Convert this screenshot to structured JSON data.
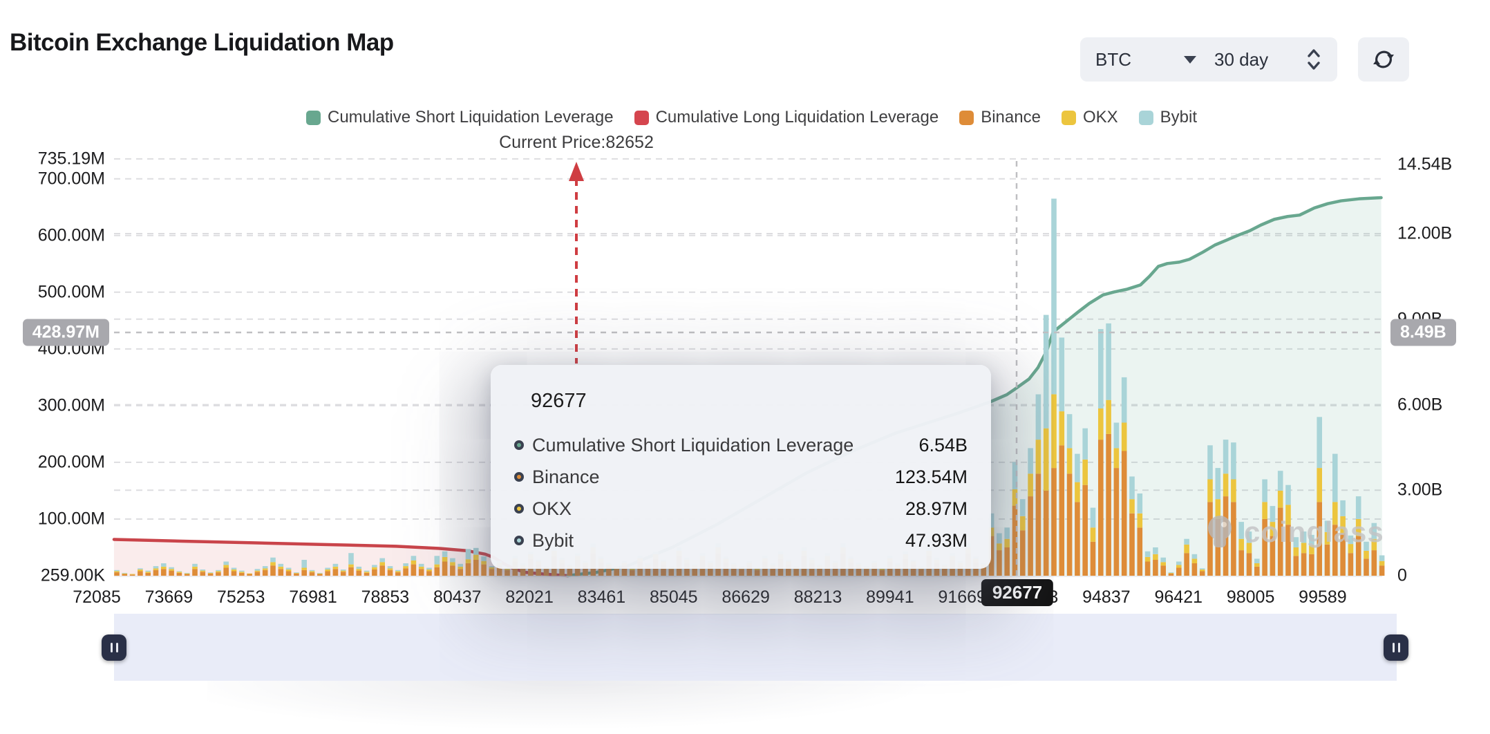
{
  "header": {
    "title": "Bitcoin Exchange Liquidation Map",
    "coin_selected": "BTC",
    "period_selected": "30 day"
  },
  "legend": [
    {
      "label": "Cumulative Short Liquidation Leverage",
      "color": "#68a78f"
    },
    {
      "label": "Cumulative Long Liquidation Leverage",
      "color": "#d5454e"
    },
    {
      "label": "Binance",
      "color": "#de8c38"
    },
    {
      "label": "OKX",
      "color": "#ecc53e"
    },
    {
      "label": "Bybit",
      "color": "#a9d4d8"
    }
  ],
  "current_price_label": "Current Price:82652",
  "tooltip": {
    "title": "92677",
    "rows": [
      {
        "label": "Cumulative Short Liquidation Leverage",
        "value": "6.54B",
        "color": "#68a78f"
      },
      {
        "label": "Binance",
        "value": "123.54M",
        "color": "#de8c38"
      },
      {
        "label": "OKX",
        "value": "28.97M",
        "color": "#ecc53e"
      },
      {
        "label": "Bybit",
        "value": "47.93M",
        "color": "#a9d4d8"
      }
    ]
  },
  "axes": {
    "left_labels": [
      {
        "text": "735.19M",
        "value": 735.19
      },
      {
        "text": "700.00M",
        "value": 700
      },
      {
        "text": "600.00M",
        "value": 600
      },
      {
        "text": "500.00M",
        "value": 500
      },
      {
        "text": "400.00M",
        "value": 400
      },
      {
        "text": "300.00M",
        "value": 300
      },
      {
        "text": "200.00M",
        "value": 200
      },
      {
        "text": "100.00M",
        "value": 100
      },
      {
        "text": "259.00K",
        "value": 0.259
      }
    ],
    "right_labels": [
      {
        "text": "14.54B",
        "value": 14.54
      },
      {
        "text": "12.00B",
        "value": 12
      },
      {
        "text": "9.00B",
        "value": 9
      },
      {
        "text": "6.00B",
        "value": 6
      },
      {
        "text": "3.00B",
        "value": 3
      },
      {
        "text": "0",
        "value": 0
      }
    ],
    "x_labels": [
      "72085",
      "73669",
      "75253",
      "76981",
      "78853",
      "80437",
      "82021",
      "83461",
      "85045",
      "86629",
      "88213",
      "89941",
      "91669",
      "93253",
      "94837",
      "96421",
      "98005",
      "99589"
    ],
    "crosshair_left_badge": "428.97M",
    "crosshair_right_badge": "8.49B",
    "crosshair_x_badge": "92677"
  },
  "watermark": "coinglass",
  "chart_data": {
    "type": "composite",
    "note": "dual-axis: left axis M (bars + long line), right axis B (short line); x = BTC price",
    "x_range": [
      72085,
      100900
    ],
    "left_axis_max_M": 735.19,
    "right_axis_max_B": 14.54,
    "current_price": 82652,
    "crosshair": {
      "x_price": 92677,
      "left_value_M": 428.97,
      "right_value_B": 8.49
    },
    "grid_left_M": [
      700,
      600,
      500,
      400,
      300,
      200,
      100
    ],
    "grid_right_B": [
      12,
      9,
      6,
      3
    ],
    "long_line_price_M": [
      [
        72472,
        64
      ],
      [
        74000,
        61
      ],
      [
        75600,
        58
      ],
      [
        77200,
        55
      ],
      [
        78800,
        52
      ],
      [
        79800,
        48
      ],
      [
        80400,
        44
      ],
      [
        80800,
        38
      ],
      [
        81000,
        32
      ],
      [
        81200,
        22
      ],
      [
        81450,
        12
      ],
      [
        81700,
        6
      ],
      [
        82100,
        3
      ],
      [
        82450,
        1
      ],
      [
        82652,
        0
      ]
    ],
    "short_line_price_B": [
      [
        82652,
        0
      ],
      [
        82900,
        0.05
      ],
      [
        83300,
        0.12
      ],
      [
        84000,
        0.35
      ],
      [
        85000,
        1.0
      ],
      [
        86000,
        1.8
      ],
      [
        87000,
        2.7
      ],
      [
        88000,
        3.6
      ],
      [
        89000,
        4.35
      ],
      [
        90000,
        5.0
      ],
      [
        91400,
        5.7
      ],
      [
        92130,
        6.1
      ],
      [
        92500,
        6.35
      ],
      [
        92677,
        6.54
      ],
      [
        93000,
        6.9
      ],
      [
        93200,
        7.3
      ],
      [
        93400,
        7.9
      ],
      [
        93540,
        8.55
      ],
      [
        93700,
        8.75
      ],
      [
        93900,
        9.0
      ],
      [
        94100,
        9.25
      ],
      [
        94350,
        9.55
      ],
      [
        94660,
        9.85
      ],
      [
        94900,
        9.95
      ],
      [
        95200,
        10.05
      ],
      [
        95500,
        10.2
      ],
      [
        95700,
        10.5
      ],
      [
        95900,
        10.85
      ],
      [
        96100,
        10.95
      ],
      [
        96370,
        11.0
      ],
      [
        96600,
        11.1
      ],
      [
        96900,
        11.35
      ],
      [
        97170,
        11.6
      ],
      [
        97400,
        11.75
      ],
      [
        97700,
        11.95
      ],
      [
        97950,
        12.1
      ],
      [
        98200,
        12.3
      ],
      [
        98500,
        12.5
      ],
      [
        98800,
        12.6
      ],
      [
        99070,
        12.65
      ],
      [
        99400,
        12.9
      ],
      [
        99700,
        13.05
      ],
      [
        100000,
        13.15
      ],
      [
        100400,
        13.22
      ],
      [
        100900,
        13.26
      ]
    ],
    "bar_series_order": [
      "Binance",
      "OKX",
      "Bybit"
    ],
    "bars_M": [
      [
        6,
        2,
        2
      ],
      [
        3,
        1,
        1
      ],
      [
        2,
        1,
        0
      ],
      [
        8,
        3,
        2
      ],
      [
        5,
        2,
        2
      ],
      [
        10,
        3,
        4
      ],
      [
        12,
        4,
        6
      ],
      [
        9,
        3,
        3
      ],
      [
        5,
        2,
        1
      ],
      [
        3,
        1,
        1
      ],
      [
        12,
        4,
        5
      ],
      [
        7,
        2,
        2
      ],
      [
        4,
        1,
        1
      ],
      [
        6,
        2,
        2
      ],
      [
        14,
        5,
        6
      ],
      [
        8,
        3,
        3
      ],
      [
        5,
        2,
        2
      ],
      [
        3,
        1,
        0
      ],
      [
        7,
        2,
        3
      ],
      [
        10,
        3,
        4
      ],
      [
        18,
        6,
        8
      ],
      [
        12,
        4,
        5
      ],
      [
        8,
        3,
        3
      ],
      [
        4,
        1,
        1
      ],
      [
        10,
        4,
        14
      ],
      [
        6,
        2,
        2
      ],
      [
        3,
        1,
        1
      ],
      [
        8,
        3,
        3
      ],
      [
        12,
        4,
        5
      ],
      [
        7,
        2,
        2
      ],
      [
        15,
        5,
        20
      ],
      [
        9,
        3,
        4
      ],
      [
        5,
        2,
        2
      ],
      [
        11,
        4,
        4
      ],
      [
        18,
        6,
        7
      ],
      [
        10,
        3,
        4
      ],
      [
        6,
        2,
        2
      ],
      [
        13,
        4,
        5
      ],
      [
        20,
        7,
        8
      ],
      [
        12,
        4,
        5
      ],
      [
        8,
        3,
        3
      ],
      [
        15,
        5,
        15
      ],
      [
        25,
        8,
        10
      ],
      [
        18,
        6,
        7
      ],
      [
        12,
        4,
        5
      ],
      [
        22,
        7,
        18
      ],
      [
        28,
        9,
        12
      ],
      [
        20,
        6,
        8
      ],
      [
        12,
        3,
        2
      ],
      [
        18,
        5,
        3
      ],
      [
        10,
        3,
        2
      ],
      [
        25,
        6,
        4
      ],
      [
        15,
        4,
        3
      ],
      [
        30,
        8,
        5
      ],
      [
        20,
        5,
        3
      ],
      [
        12,
        3,
        2
      ],
      [
        35,
        9,
        6
      ],
      [
        22,
        6,
        4
      ],
      [
        14,
        4,
        2
      ],
      [
        28,
        7,
        5
      ],
      [
        18,
        5,
        3
      ],
      [
        40,
        10,
        7
      ],
      [
        24,
        6,
        4
      ],
      [
        16,
        4,
        3
      ],
      [
        12,
        3,
        2
      ],
      [
        18,
        5,
        3
      ],
      [
        10,
        3,
        2
      ],
      [
        25,
        6,
        4
      ],
      [
        15,
        4,
        3
      ],
      [
        30,
        8,
        5
      ],
      [
        20,
        5,
        3
      ],
      [
        12,
        3,
        2
      ],
      [
        35,
        9,
        6
      ],
      [
        22,
        6,
        4
      ],
      [
        14,
        4,
        2
      ],
      [
        28,
        7,
        5
      ],
      [
        18,
        5,
        3
      ],
      [
        40,
        10,
        7
      ],
      [
        24,
        6,
        4
      ],
      [
        16,
        4,
        3
      ],
      [
        12,
        3,
        2
      ],
      [
        18,
        5,
        3
      ],
      [
        10,
        3,
        2
      ],
      [
        25,
        6,
        4
      ],
      [
        15,
        4,
        3
      ],
      [
        30,
        8,
        5
      ],
      [
        20,
        5,
        3
      ],
      [
        12,
        3,
        2
      ],
      [
        35,
        9,
        6
      ],
      [
        22,
        6,
        4
      ],
      [
        14,
        4,
        2
      ],
      [
        28,
        7,
        5
      ],
      [
        18,
        5,
        3
      ],
      [
        40,
        10,
        7
      ],
      [
        24,
        6,
        4
      ],
      [
        16,
        4,
        3
      ],
      [
        12,
        3,
        2
      ],
      [
        18,
        5,
        3
      ],
      [
        10,
        3,
        2
      ],
      [
        25,
        6,
        4
      ],
      [
        15,
        4,
        3
      ],
      [
        30,
        8,
        5
      ],
      [
        20,
        5,
        3
      ],
      [
        12,
        3,
        2
      ],
      [
        35,
        9,
        6
      ],
      [
        22,
        6,
        4
      ],
      [
        14,
        4,
        2
      ],
      [
        28,
        7,
        5
      ],
      [
        18,
        5,
        3
      ],
      [
        40,
        10,
        7
      ],
      [
        24,
        6,
        4
      ],
      [
        16,
        4,
        3
      ],
      [
        70,
        15,
        25
      ],
      [
        45,
        12,
        18
      ],
      [
        50,
        15,
        20
      ],
      [
        123.54,
        28.97,
        47.93
      ],
      [
        80,
        25,
        30
      ],
      [
        140,
        40,
        45
      ],
      [
        180,
        60,
        80
      ],
      [
        150,
        110,
        200
      ],
      [
        190,
        130,
        345
      ],
      [
        230,
        60,
        130
      ],
      [
        180,
        45,
        60
      ],
      [
        130,
        35,
        50
      ],
      [
        160,
        45,
        55
      ],
      [
        60,
        25,
        35
      ],
      [
        240,
        55,
        140
      ],
      [
        250,
        60,
        135
      ],
      [
        190,
        35,
        45
      ],
      [
        220,
        50,
        80
      ],
      [
        110,
        25,
        40
      ],
      [
        85,
        25,
        35
      ],
      [
        25,
        8,
        10
      ],
      [
        28,
        10,
        12
      ],
      [
        18,
        6,
        8
      ],
      [
        4,
        1,
        1
      ],
      [
        14,
        5,
        6
      ],
      [
        40,
        15,
        10
      ],
      [
        22,
        8,
        8
      ],
      [
        8,
        3,
        2
      ],
      [
        130,
        40,
        60
      ],
      [
        100,
        35,
        55
      ],
      [
        140,
        40,
        60
      ],
      [
        130,
        40,
        65
      ],
      [
        45,
        20,
        30
      ],
      [
        40,
        18,
        20
      ],
      [
        16,
        6,
        8
      ],
      [
        100,
        30,
        40
      ],
      [
        70,
        25,
        28
      ],
      [
        120,
        30,
        35
      ],
      [
        90,
        35,
        35
      ],
      [
        35,
        15,
        18
      ],
      [
        40,
        18,
        20
      ],
      [
        38,
        16,
        18
      ],
      [
        130,
        60,
        90
      ],
      [
        55,
        22,
        20
      ],
      [
        90,
        40,
        85
      ],
      [
        75,
        30,
        28
      ],
      [
        40,
        16,
        15
      ],
      [
        70,
        30,
        40
      ],
      [
        30,
        14,
        16
      ],
      [
        45,
        20,
        28
      ],
      [
        18,
        8,
        10
      ]
    ],
    "colors": {
      "short_line": "#68a78f",
      "short_fill": "rgba(104,167,143,0.13)",
      "long_line": "#c9444a",
      "long_fill": "rgba(213,80,85,0.11)",
      "binance": "#de8c38",
      "okx": "#ecc53e",
      "bybit": "#a9d4d8",
      "grid": "#dddde0",
      "crosshair": "#bfbfc2",
      "price_arrow": "#cf3d42"
    }
  }
}
